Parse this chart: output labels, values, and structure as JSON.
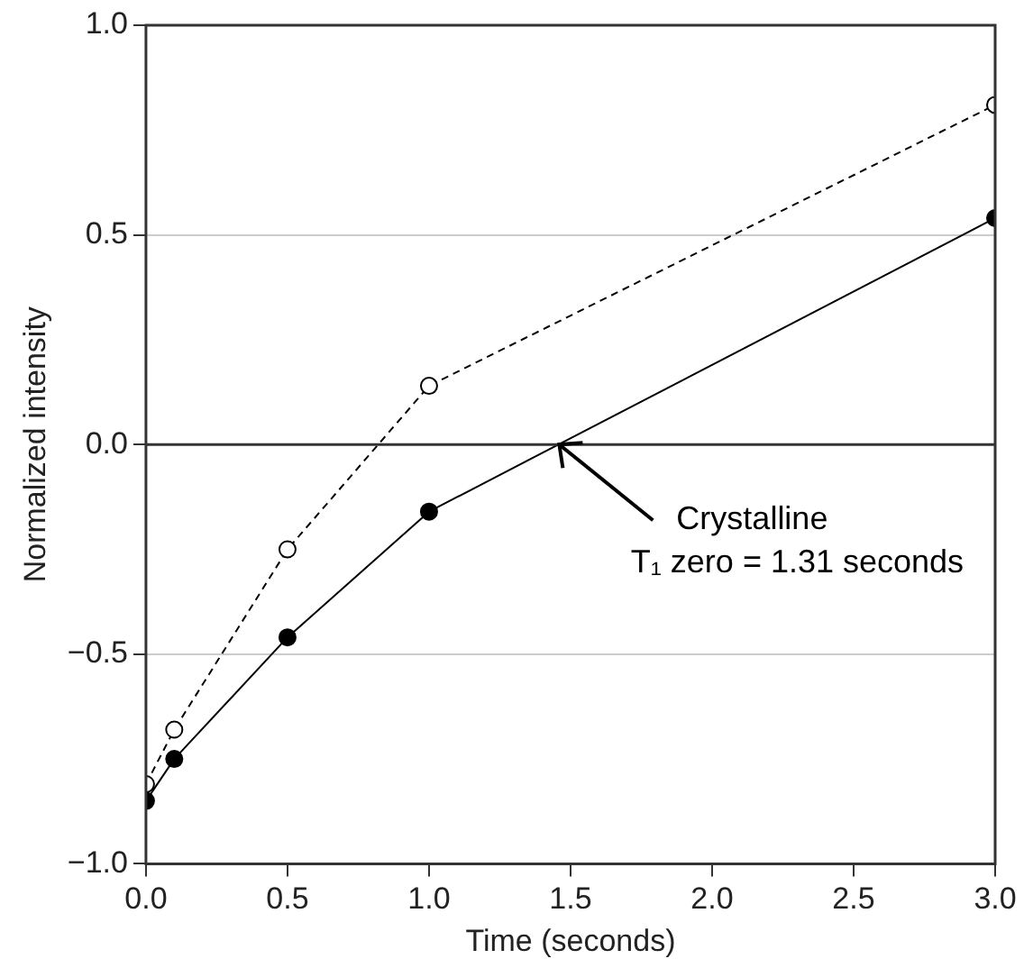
{
  "chart_data": {
    "type": "line",
    "xlabel": "Time (seconds)",
    "ylabel": "Normalized intensity",
    "xlim": [
      0,
      3
    ],
    "xticks": [
      {
        "value": 0,
        "label": "0.0"
      },
      {
        "value": 0.5,
        "label": "0.5"
      },
      {
        "value": 1,
        "label": "1.0"
      },
      {
        "value": 1.5,
        "label": "1.5"
      },
      {
        "value": 2,
        "label": "2.0"
      },
      {
        "value": 2.5,
        "label": "2.5"
      },
      {
        "value": 3,
        "label": "3.0"
      }
    ],
    "ylim": [
      -1,
      1
    ],
    "yticks": [
      {
        "value": -1,
        "label": "−1.0"
      },
      {
        "value": -0.5,
        "label": "−0.5"
      },
      {
        "value": 0,
        "label": "0.0"
      },
      {
        "value": 0.5,
        "label": "0.5"
      },
      {
        "value": 1,
        "label": "1.0"
      }
    ],
    "grid": "y",
    "legend": false,
    "marker": "circle",
    "series": [
      {
        "color": "#000000",
        "line_style": "dashed",
        "x": [
          0,
          0.1,
          0.5,
          1,
          3
        ],
        "values": [
          -0.81,
          -0.68,
          -0.25,
          0.14,
          0.81
        ]
      },
      {
        "color": "#000000",
        "line_style": "solid",
        "x": [
          0,
          0.1,
          0.5,
          1,
          3
        ],
        "values": [
          -0.85,
          -0.75,
          -0.46,
          -0.16,
          0.54
        ]
      }
    ],
    "ref_lines": [
      {
        "axis": "y",
        "value": 0,
        "color": "#333333"
      }
    ],
    "annotations": [
      {
        "text": "Crystalline\nT₁ zero = 1.31 seconds",
        "x": 1.46,
        "y": 0
      }
    ]
  }
}
